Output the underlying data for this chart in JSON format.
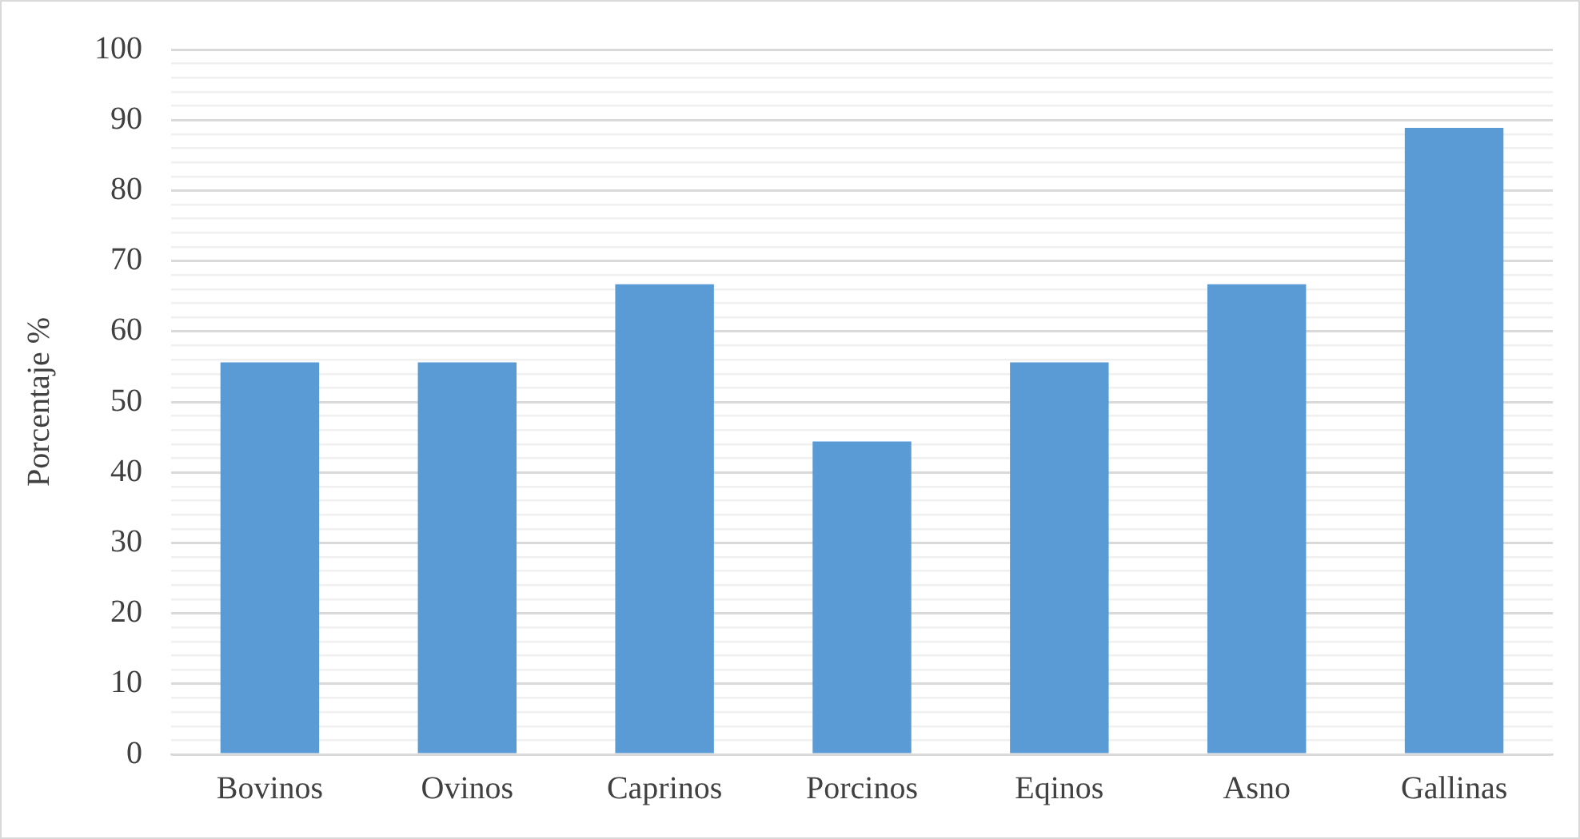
{
  "chart_data": {
    "type": "bar",
    "ylabel": "Porcentaje %",
    "categories": [
      "Bovinos",
      "Ovinos",
      "Caprinos",
      "Porcinos",
      "Eqinos",
      "Asno",
      "Gallinas"
    ],
    "values": [
      55.6,
      55.6,
      66.7,
      44.4,
      55.6,
      66.7,
      88.9
    ],
    "color": "#5b9bd5",
    "ylim": [
      0,
      100
    ],
    "yticks": [
      0,
      {
        "value": 2,
        "label": null
      },
      {
        "value": 4,
        "label": null
      },
      {
        "value": 6,
        "label": null
      },
      {
        "value": 8,
        "label": null
      },
      10,
      {
        "value": 12,
        "label": null
      },
      {
        "value": 14,
        "label": null
      },
      {
        "value": 16,
        "label": null
      },
      {
        "value": 18,
        "label": null
      },
      20,
      {
        "value": 22,
        "label": null
      },
      {
        "value": 24,
        "label": null
      },
      {
        "value": 26,
        "label": null
      },
      {
        "value": 28,
        "label": null
      },
      30,
      {
        "value": 32,
        "label": null
      },
      {
        "value": 34,
        "label": null
      },
      {
        "value": 36,
        "label": null
      },
      {
        "value": 38,
        "label": null
      },
      40,
      {
        "value": 42,
        "label": null
      },
      {
        "value": 44,
        "label": null
      },
      {
        "value": 46,
        "label": null
      },
      {
        "value": 48,
        "label": null
      },
      50,
      {
        "value": 52,
        "label": null
      },
      {
        "value": 54,
        "label": null
      },
      {
        "value": 56,
        "label": null
      },
      {
        "value": 58,
        "label": null
      },
      60,
      {
        "value": 62,
        "label": null
      },
      {
        "value": 64,
        "label": null
      },
      {
        "value": 66,
        "label": null
      },
      {
        "value": 68,
        "label": null
      },
      70,
      {
        "value": 72,
        "label": null
      },
      {
        "value": 74,
        "label": null
      },
      {
        "value": 76,
        "label": null
      },
      {
        "value": 78,
        "label": null
      },
      80,
      {
        "value": 82,
        "label": null
      },
      {
        "value": 84,
        "label": null
      },
      {
        "value": 86,
        "label": null
      },
      {
        "value": 88,
        "label": null
      },
      90,
      {
        "value": 92,
        "label": null
      },
      {
        "value": 94,
        "label": null
      },
      {
        "value": 96,
        "label": null
      },
      {
        "value": 98,
        "label": null
      },
      100
    ],
    "grid": "y",
    "legend": false
  }
}
